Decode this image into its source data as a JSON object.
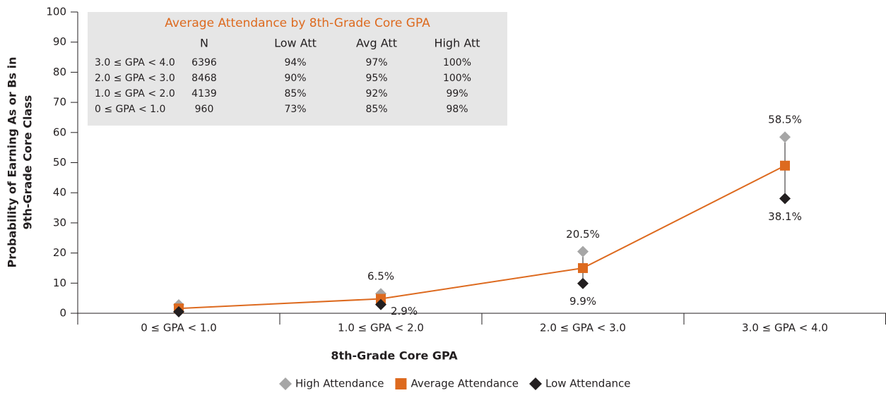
{
  "chart_data": {
    "type": "line",
    "x_label": "8th-Grade Core GPA",
    "y_label": [
      "Probability of Earning As or Bs in",
      "9th-Grade Core Class"
    ],
    "categories": [
      "0 ≤ GPA < 1.0",
      "1.0 ≤ GPA < 2.0",
      "2.0 ≤ GPA < 3.0",
      "3.0 ≤ GPA < 4.0"
    ],
    "series": [
      {
        "name": "High Attendance",
        "color": "#a6a6a6",
        "marker": "diamond",
        "values": [
          2.8,
          6.5,
          20.5,
          58.5
        ],
        "value_labels": [
          null,
          "6.5%",
          "20.5%",
          "58.5%"
        ]
      },
      {
        "name": "Average Attendance",
        "color": "#dd6a1f",
        "marker": "square",
        "values": [
          1.6,
          4.8,
          15,
          49
        ]
      },
      {
        "name": "Low Attendance",
        "color": "#231f20",
        "marker": "diamond",
        "values": [
          0.5,
          2.9,
          9.9,
          38.1
        ],
        "value_labels": [
          null,
          "2.9%",
          "9.9%",
          "38.1%"
        ]
      }
    ],
    "ylim": [
      0,
      100
    ],
    "yticks": [
      0,
      10,
      20,
      30,
      40,
      50,
      60,
      70,
      80,
      90,
      100
    ],
    "legend": "bottom",
    "inset_table": {
      "title": "Average Attendance by 8th-Grade Core GPA",
      "columns": [
        "",
        "N",
        "Low Att",
        "Avg Att",
        "High Att"
      ],
      "rows": [
        [
          "3.0 ≤ GPA < 4.0",
          "6396",
          "94%",
          "97%",
          "100%"
        ],
        [
          "2.0 ≤ GPA < 3.0",
          "8468",
          "90%",
          "95%",
          "100%"
        ],
        [
          "1.0 ≤ GPA < 2.0",
          "4139",
          "85%",
          "92%",
          "99%"
        ],
        [
          "0 ≤ GPA < 1.0",
          "960",
          "73%",
          "85%",
          "98%"
        ]
      ]
    }
  }
}
